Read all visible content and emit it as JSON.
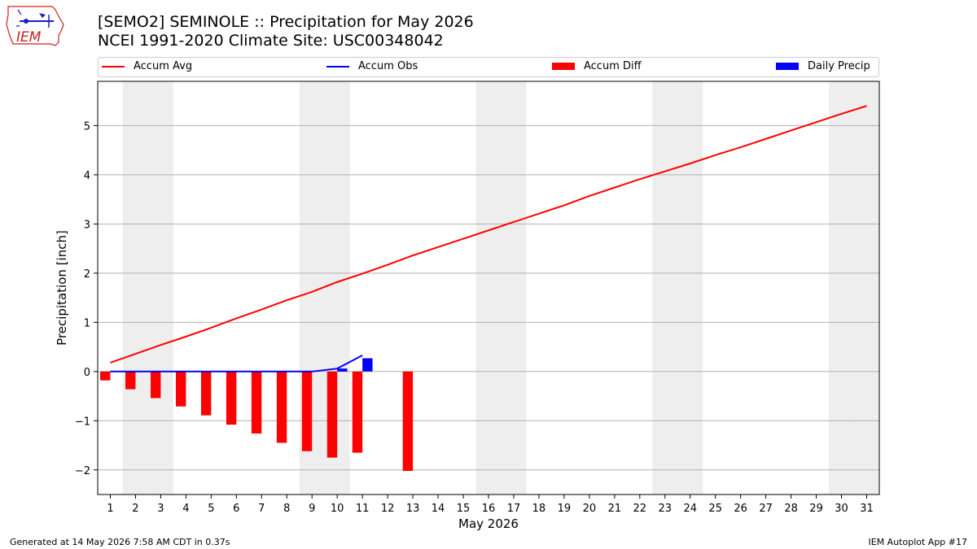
{
  "title": {
    "line1": "[SEMO2] SEMINOLE :: Precipitation for May 2026",
    "line2": "NCEI 1991-2020 Climate Site: USC00348042"
  },
  "logo": {
    "text": "IEM",
    "icon": "iem-iowa-logo-icon"
  },
  "legend": [
    {
      "label": "Accum Avg",
      "kind": "line",
      "color": "#ff0000"
    },
    {
      "label": "Accum Obs",
      "kind": "line",
      "color": "#0000ff"
    },
    {
      "label": "Accum Diff",
      "kind": "bar",
      "color": "#ff0000"
    },
    {
      "label": "Daily Precip",
      "kind": "bar",
      "color": "#0000ff"
    }
  ],
  "footer": {
    "left": "Generated at 14 May 2026 7:58 AM CDT in 0.37s",
    "right": "IEM Autoplot App #17"
  },
  "chart_data": {
    "type": "bar",
    "xlabel": "May 2026",
    "ylabel": "Precipitation [inch]",
    "xlim": [
      0.5,
      31.5
    ],
    "ylim": [
      -2.5,
      5.9
    ],
    "yticks": [
      -2,
      -1,
      0,
      1,
      2,
      3,
      4,
      5
    ],
    "ytick_labels": [
      "−2",
      "−1",
      "0",
      "1",
      "2",
      "3",
      "4",
      "5"
    ],
    "days": [
      1,
      2,
      3,
      4,
      5,
      6,
      7,
      8,
      9,
      10,
      11,
      12,
      13,
      14,
      15,
      16,
      17,
      18,
      19,
      20,
      21,
      22,
      23,
      24,
      25,
      26,
      27,
      28,
      29,
      30,
      31
    ],
    "weekend_days": [
      2,
      3,
      9,
      10,
      16,
      17,
      23,
      24,
      30,
      31
    ],
    "grid": "horizontal",
    "series": [
      {
        "name": "Accum Avg",
        "type": "line",
        "color": "#ff0000",
        "x": [
          1,
          2,
          3,
          4,
          5,
          6,
          7,
          8,
          9,
          10,
          11,
          12,
          13,
          14,
          15,
          16,
          17,
          18,
          19,
          20,
          21,
          22,
          23,
          24,
          25,
          26,
          27,
          28,
          29,
          30,
          31
        ],
        "values": [
          0.18,
          0.36,
          0.54,
          0.71,
          0.89,
          1.08,
          1.26,
          1.45,
          1.62,
          1.82,
          1.99,
          2.17,
          2.36,
          2.53,
          2.7,
          2.87,
          3.04,
          3.21,
          3.38,
          3.57,
          3.74,
          3.91,
          4.07,
          4.23,
          4.4,
          4.56,
          4.73,
          4.9,
          5.07,
          5.24,
          5.4
        ]
      },
      {
        "name": "Accum Obs",
        "type": "line",
        "color": "#0000ff",
        "x": [
          1,
          2,
          3,
          4,
          5,
          6,
          7,
          8,
          9,
          10,
          11
        ],
        "values": [
          0,
          0,
          0,
          0,
          0,
          0,
          0,
          0,
          0,
          0.06,
          0.33
        ]
      },
      {
        "name": "Accum Diff",
        "type": "bar",
        "color": "#ff0000",
        "x": [
          1,
          2,
          3,
          4,
          5,
          6,
          7,
          8,
          9,
          10,
          11,
          13
        ],
        "values": [
          -0.18,
          -0.36,
          -0.54,
          -0.71,
          -0.89,
          -1.08,
          -1.26,
          -1.45,
          -1.62,
          -1.75,
          -1.65,
          -2.02
        ]
      },
      {
        "name": "Daily Precip",
        "type": "bar",
        "color": "#0000ff",
        "x": [
          10,
          11
        ],
        "values": [
          0.06,
          0.27
        ]
      }
    ]
  }
}
